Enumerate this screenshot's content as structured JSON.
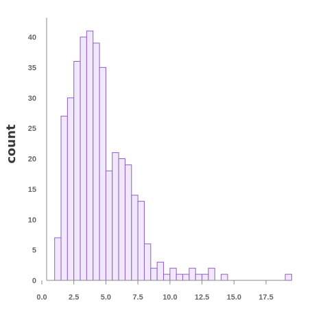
{
  "chart_data": {
    "type": "bar",
    "title": "",
    "xlabel": "",
    "ylabel": "count",
    "xlim": [
      0.0,
      20.0
    ],
    "ylim": [
      0,
      43
    ],
    "grid": false,
    "bin_width": 0.5,
    "x_ticks": [
      "0.0",
      "2.5",
      "5.0",
      "7.5",
      "10.0",
      "12.5",
      "15.0",
      "17.5"
    ],
    "y_ticks": [
      "0",
      "5",
      "10",
      "15",
      "20",
      "25",
      "30",
      "35",
      "40"
    ],
    "bins": [
      {
        "start": 1.0,
        "count": 7
      },
      {
        "start": 1.5,
        "count": 27
      },
      {
        "start": 2.0,
        "count": 30
      },
      {
        "start": 2.5,
        "count": 36
      },
      {
        "start": 3.0,
        "count": 40
      },
      {
        "start": 3.5,
        "count": 41
      },
      {
        "start": 4.0,
        "count": 39
      },
      {
        "start": 4.5,
        "count": 35
      },
      {
        "start": 5.0,
        "count": 18
      },
      {
        "start": 5.5,
        "count": 21
      },
      {
        "start": 6.0,
        "count": 20
      },
      {
        "start": 6.5,
        "count": 19
      },
      {
        "start": 7.0,
        "count": 14
      },
      {
        "start": 7.5,
        "count": 13
      },
      {
        "start": 8.0,
        "count": 6
      },
      {
        "start": 8.5,
        "count": 2
      },
      {
        "start": 9.0,
        "count": 3
      },
      {
        "start": 9.5,
        "count": 1
      },
      {
        "start": 10.0,
        "count": 2
      },
      {
        "start": 10.5,
        "count": 1
      },
      {
        "start": 11.0,
        "count": 1
      },
      {
        "start": 11.5,
        "count": 2
      },
      {
        "start": 12.0,
        "count": 1
      },
      {
        "start": 12.5,
        "count": 1
      },
      {
        "start": 13.0,
        "count": 2
      },
      {
        "start": 14.0,
        "count": 1
      },
      {
        "start": 19.0,
        "count": 1
      }
    ],
    "colors": {
      "bar_fill": "#f1e8fb",
      "bar_stroke": "#8f5cc9",
      "axis": "#888888",
      "tick_text": "#666666",
      "title_text": "#3a3a3a"
    }
  }
}
